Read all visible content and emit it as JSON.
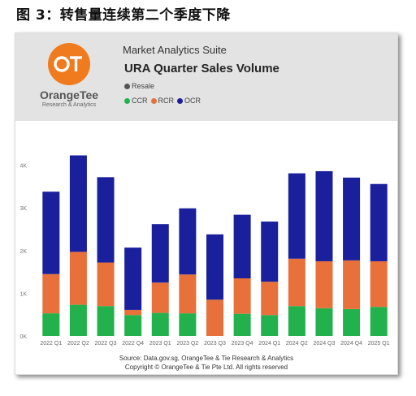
{
  "figure_caption": "图 3：转售量连续第二个季度下降",
  "header": {
    "logo_text": "OT",
    "brand_name": "OrangeTee",
    "brand_tagline": "Research & Analytics",
    "suite_title": "Market Analytics Suite"
  },
  "legend": {
    "resale_label": "Resale",
    "resale_color": "#555555",
    "segments": [
      {
        "label": "CCR",
        "color": "#22b14c"
      },
      {
        "label": "RCR",
        "color": "#e8703a"
      },
      {
        "label": "OCR",
        "color": "#1a1f9c"
      }
    ]
  },
  "chart_data": {
    "type": "bar",
    "stacked": true,
    "title": "URA Quarter Sales Volume",
    "categories": [
      "2022 Q1",
      "2022 Q2",
      "2022 Q3",
      "2022 Q4",
      "2023 Q1",
      "2023 Q2",
      "2023 Q3",
      "2023 Q4",
      "2024 Q1",
      "2024 Q2",
      "2024 Q3",
      "2024 Q4",
      "2025 Q1"
    ],
    "series": [
      {
        "name": "CCR",
        "color": "#22b14c",
        "values": [
          530,
          730,
          700,
          490,
          540,
          530,
          0,
          520,
          490,
          700,
          650,
          630,
          680
        ]
      },
      {
        "name": "RCR",
        "color": "#e8703a",
        "values": [
          920,
          1240,
          1020,
          120,
          710,
          910,
          850,
          830,
          780,
          1110,
          1100,
          1140,
          1070
        ]
      },
      {
        "name": "OCR",
        "color": "#1a1f9c",
        "values": [
          1930,
          2260,
          2000,
          1460,
          1370,
          1550,
          1530,
          1490,
          1410,
          2000,
          2110,
          1940,
          1810
        ]
      }
    ],
    "ylim": [
      0,
      4500
    ],
    "yticks": [
      0,
      1000,
      2000,
      3000,
      4000
    ],
    "ytick_labels": [
      "0K",
      "1K",
      "2K",
      "3K",
      "4K"
    ],
    "grid": false,
    "legend_position": "top"
  },
  "source_line": "Source: Data.gov.sg, OrangeTee & Tie Research & Analytics",
  "copyright_line": "Copyright © OrangeTee & Tie Pte Ltd. All rights reserved"
}
